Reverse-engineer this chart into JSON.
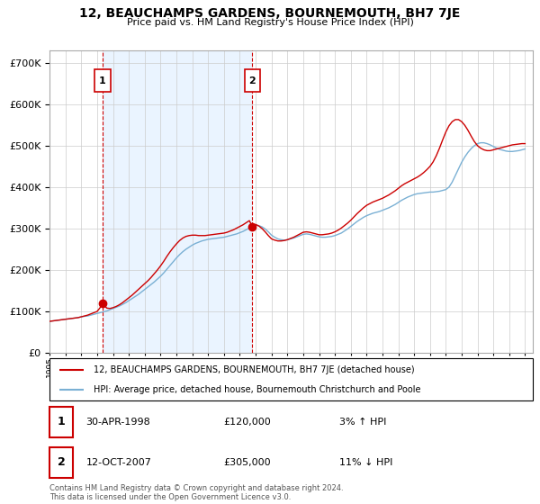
{
  "title": "12, BEAUCHAMPS GARDENS, BOURNEMOUTH, BH7 7JE",
  "subtitle": "Price paid vs. HM Land Registry's House Price Index (HPI)",
  "legend_line1": "12, BEAUCHAMPS GARDENS, BOURNEMOUTH, BH7 7JE (detached house)",
  "legend_line2": "HPI: Average price, detached house, Bournemouth Christchurch and Poole",
  "footer": "Contains HM Land Registry data © Crown copyright and database right 2024.\nThis data is licensed under the Open Government Licence v3.0.",
  "transaction1_label": "1",
  "transaction1_date": "30-APR-1998",
  "transaction1_price": "£120,000",
  "transaction1_hpi": "3% ↑ HPI",
  "transaction2_label": "2",
  "transaction2_date": "12-OCT-2007",
  "transaction2_price": "£305,000",
  "transaction2_hpi": "11% ↓ HPI",
  "ylim": [
    0,
    730000
  ],
  "yticks": [
    0,
    100000,
    200000,
    300000,
    400000,
    500000,
    600000,
    700000
  ],
  "xlim_start": 1995.0,
  "xlim_end": 2025.5,
  "color_paid": "#cc0000",
  "color_hpi": "#7ab0d4",
  "color_vline": "#cc0000",
  "color_shade": "#ddeeff",
  "marker1_x": 1998.33,
  "marker1_y": 120000,
  "marker2_x": 2007.79,
  "marker2_y": 305000,
  "hpi_data_years": [
    1995.0,
    1995.2,
    1995.4,
    1995.6,
    1995.8,
    1996.0,
    1996.2,
    1996.4,
    1996.6,
    1996.8,
    1997.0,
    1997.2,
    1997.4,
    1997.6,
    1997.8,
    1998.0,
    1998.2,
    1998.4,
    1998.6,
    1998.8,
    1999.0,
    1999.2,
    1999.4,
    1999.6,
    1999.8,
    2000.0,
    2000.2,
    2000.4,
    2000.6,
    2000.8,
    2001.0,
    2001.2,
    2001.4,
    2001.6,
    2001.8,
    2002.0,
    2002.2,
    2002.4,
    2002.6,
    2002.8,
    2003.0,
    2003.2,
    2003.4,
    2003.6,
    2003.8,
    2004.0,
    2004.2,
    2004.4,
    2004.6,
    2004.8,
    2005.0,
    2005.2,
    2005.4,
    2005.6,
    2005.8,
    2006.0,
    2006.2,
    2006.4,
    2006.6,
    2006.8,
    2007.0,
    2007.2,
    2007.4,
    2007.6,
    2007.8,
    2008.0,
    2008.2,
    2008.4,
    2008.6,
    2008.8,
    2009.0,
    2009.2,
    2009.4,
    2009.6,
    2009.8,
    2010.0,
    2010.2,
    2010.4,
    2010.6,
    2010.8,
    2011.0,
    2011.2,
    2011.4,
    2011.6,
    2011.8,
    2012.0,
    2012.2,
    2012.4,
    2012.6,
    2012.8,
    2013.0,
    2013.2,
    2013.4,
    2013.6,
    2013.8,
    2014.0,
    2014.2,
    2014.4,
    2014.6,
    2014.8,
    2015.0,
    2015.2,
    2015.4,
    2015.6,
    2015.8,
    2016.0,
    2016.2,
    2016.4,
    2016.6,
    2016.8,
    2017.0,
    2017.2,
    2017.4,
    2017.6,
    2017.8,
    2018.0,
    2018.2,
    2018.4,
    2018.6,
    2018.8,
    2019.0,
    2019.2,
    2019.4,
    2019.6,
    2019.8,
    2020.0,
    2020.2,
    2020.4,
    2020.6,
    2020.8,
    2021.0,
    2021.2,
    2021.4,
    2021.6,
    2021.8,
    2022.0,
    2022.2,
    2022.4,
    2022.6,
    2022.8,
    2023.0,
    2023.2,
    2023.4,
    2023.6,
    2023.8,
    2024.0,
    2024.2,
    2024.4,
    2024.6,
    2024.8,
    2025.0
  ],
  "hpi_data_values": [
    76000,
    77000,
    78000,
    79000,
    80000,
    81000,
    82000,
    83000,
    84000,
    85000,
    87000,
    88000,
    89000,
    91000,
    93000,
    95000,
    97000,
    99000,
    101000,
    104000,
    107000,
    110000,
    113000,
    117000,
    121000,
    126000,
    131000,
    136000,
    141000,
    147000,
    153000,
    159000,
    165000,
    171000,
    178000,
    185000,
    193000,
    202000,
    211000,
    220000,
    229000,
    237000,
    244000,
    250000,
    255000,
    260000,
    264000,
    267000,
    270000,
    272000,
    274000,
    275000,
    276000,
    277000,
    278000,
    279000,
    281000,
    283000,
    285000,
    287000,
    290000,
    293000,
    297000,
    301000,
    305000,
    308000,
    307000,
    304000,
    299000,
    292000,
    284000,
    279000,
    275000,
    273000,
    272000,
    273000,
    275000,
    277000,
    280000,
    283000,
    286000,
    287000,
    286000,
    284000,
    282000,
    280000,
    279000,
    279000,
    280000,
    281000,
    283000,
    286000,
    289000,
    294000,
    299000,
    305000,
    311000,
    317000,
    322000,
    327000,
    331000,
    334000,
    337000,
    339000,
    341000,
    344000,
    347000,
    350000,
    354000,
    358000,
    363000,
    368000,
    372000,
    376000,
    379000,
    382000,
    384000,
    385000,
    386000,
    387000,
    388000,
    388000,
    389000,
    390000,
    392000,
    394000,
    400000,
    412000,
    428000,
    444000,
    460000,
    473000,
    484000,
    493000,
    500000,
    505000,
    507000,
    507000,
    505000,
    502000,
    498000,
    494000,
    491000,
    489000,
    487000,
    486000,
    486000,
    487000,
    488000,
    490000,
    492000
  ],
  "pp_data_years": [
    1995.0,
    1995.2,
    1995.4,
    1995.6,
    1995.8,
    1996.0,
    1996.2,
    1996.4,
    1996.6,
    1996.8,
    1997.0,
    1997.2,
    1997.4,
    1997.6,
    1997.8,
    1998.0,
    1998.2,
    1998.33,
    1998.6,
    1998.8,
    1999.0,
    1999.2,
    1999.4,
    1999.6,
    1999.8,
    2000.0,
    2000.2,
    2000.4,
    2000.6,
    2000.8,
    2001.0,
    2001.2,
    2001.4,
    2001.6,
    2001.8,
    2002.0,
    2002.2,
    2002.4,
    2002.6,
    2002.8,
    2003.0,
    2003.2,
    2003.4,
    2003.6,
    2003.8,
    2004.0,
    2004.2,
    2004.4,
    2004.6,
    2004.8,
    2005.0,
    2005.2,
    2005.4,
    2005.6,
    2005.8,
    2006.0,
    2006.2,
    2006.4,
    2006.6,
    2006.8,
    2007.0,
    2007.2,
    2007.4,
    2007.6,
    2007.79,
    2008.0,
    2008.2,
    2008.4,
    2008.6,
    2008.8,
    2009.0,
    2009.2,
    2009.4,
    2009.6,
    2009.8,
    2010.0,
    2010.2,
    2010.4,
    2010.6,
    2010.8,
    2011.0,
    2011.2,
    2011.4,
    2011.6,
    2011.8,
    2012.0,
    2012.2,
    2012.4,
    2012.6,
    2012.8,
    2013.0,
    2013.2,
    2013.4,
    2013.6,
    2013.8,
    2014.0,
    2014.2,
    2014.4,
    2014.6,
    2014.8,
    2015.0,
    2015.2,
    2015.4,
    2015.6,
    2015.8,
    2016.0,
    2016.2,
    2016.4,
    2016.6,
    2016.8,
    2017.0,
    2017.2,
    2017.4,
    2017.6,
    2017.8,
    2018.0,
    2018.2,
    2018.4,
    2018.6,
    2018.8,
    2019.0,
    2019.2,
    2019.4,
    2019.6,
    2019.8,
    2020.0,
    2020.2,
    2020.4,
    2020.6,
    2020.8,
    2021.0,
    2021.2,
    2021.4,
    2021.6,
    2021.8,
    2022.0,
    2022.2,
    2022.4,
    2022.6,
    2022.8,
    2023.0,
    2023.2,
    2023.4,
    2023.6,
    2023.8,
    2024.0,
    2024.2,
    2024.4,
    2024.6,
    2024.8,
    2025.0
  ],
  "pp_data_values": [
    76000,
    77000,
    78000,
    79000,
    80000,
    81000,
    82000,
    83000,
    84000,
    85000,
    87000,
    89000,
    91000,
    94000,
    97000,
    100000,
    110000,
    120000,
    108000,
    107000,
    109000,
    112000,
    116000,
    121000,
    127000,
    133000,
    139000,
    146000,
    153000,
    160000,
    167000,
    174000,
    182000,
    191000,
    200000,
    210000,
    221000,
    233000,
    244000,
    254000,
    263000,
    271000,
    277000,
    281000,
    283000,
    284000,
    284000,
    283000,
    283000,
    283000,
    284000,
    285000,
    286000,
    287000,
    288000,
    289000,
    291000,
    294000,
    297000,
    301000,
    305000,
    309000,
    314000,
    319000,
    305000,
    310000,
    306000,
    300000,
    292000,
    283000,
    275000,
    272000,
    270000,
    270000,
    271000,
    273000,
    276000,
    279000,
    283000,
    287000,
    291000,
    292000,
    291000,
    289000,
    287000,
    285000,
    285000,
    286000,
    287000,
    289000,
    292000,
    296000,
    301000,
    307000,
    313000,
    320000,
    328000,
    336000,
    343000,
    350000,
    356000,
    360000,
    364000,
    367000,
    370000,
    373000,
    377000,
    381000,
    386000,
    391000,
    397000,
    403000,
    408000,
    412000,
    416000,
    420000,
    424000,
    429000,
    435000,
    442000,
    450000,
    461000,
    476000,
    494000,
    514000,
    533000,
    548000,
    558000,
    563000,
    563000,
    558000,
    549000,
    537000,
    523000,
    510000,
    500000,
    494000,
    490000,
    488000,
    488000,
    490000,
    492000,
    494000,
    496000,
    498000,
    500000,
    502000,
    503000,
    504000,
    505000,
    505000
  ]
}
